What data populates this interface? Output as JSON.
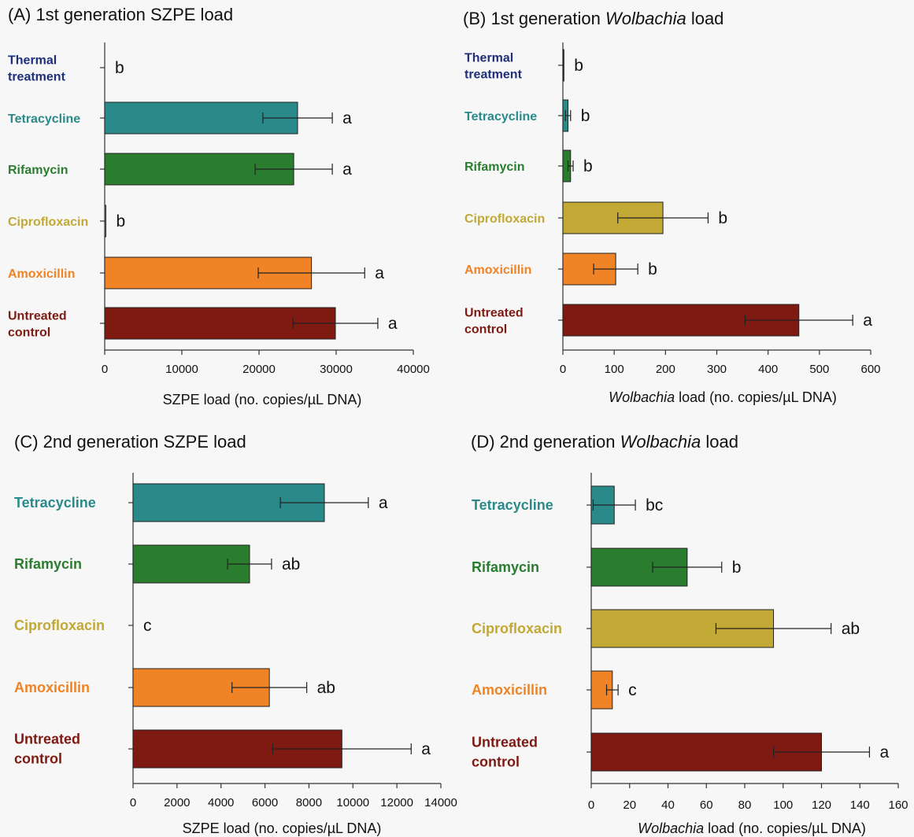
{
  "colors": {
    "Thermal treatment": "#1f2f7a",
    "Tetracycline": "#2a8a89",
    "Rifamycin": "#2a7d2e",
    "Ciprofloxacin": "#c2a834",
    "Amoxicillin": "#ef8325",
    "Untreated control": "#7f1a12"
  },
  "chart_data": [
    {
      "id": "A",
      "type": "bar",
      "orientation": "horizontal",
      "title": "(A) 1st generation SZPE load",
      "xlabel": "SZPE load (no. copies/µL DNA)",
      "xlabel_parts": [
        {
          "t": "SZPE load (no. copies/µL DNA)",
          "i": false
        }
      ],
      "xlim": [
        0,
        40000
      ],
      "xticks": [
        0,
        10000,
        20000,
        30000,
        40000
      ],
      "categories": [
        "Thermal treatment",
        "Tetracycline",
        "Rifamycin",
        "Ciprofloxacin",
        "Amoxicillin",
        "Untreated control"
      ],
      "category_lines": [
        [
          "Thermal",
          "treatment"
        ],
        [
          "Tetracycline"
        ],
        [
          "Rifamycin"
        ],
        [
          "Ciprofloxacin"
        ],
        [
          "Amoxicillin"
        ],
        [
          "Untreated",
          "control"
        ]
      ],
      "values": [
        0,
        25000,
        24500,
        150,
        26800,
        29900
      ],
      "errors": [
        0,
        4500,
        5000,
        0,
        6900,
        5500
      ],
      "significance": [
        "b",
        "a",
        "a",
        "b",
        "a",
        "a"
      ],
      "grid": false
    },
    {
      "id": "B",
      "type": "bar",
      "orientation": "horizontal",
      "title": "(B) 1st generation Wolbachia load",
      "title_parts": [
        {
          "t": "(B) 1st generation ",
          "i": false
        },
        {
          "t": "Wolbachia",
          "i": true
        },
        {
          "t": " load",
          "i": false
        }
      ],
      "xlabel": "Wolbachia load (no. copies/µL DNA)",
      "xlabel_parts": [
        {
          "t": "Wolbachia",
          "i": true
        },
        {
          "t": " load (no. copies/µL DNA)",
          "i": false
        }
      ],
      "xlim": [
        0,
        600
      ],
      "xticks": [
        0,
        100,
        200,
        300,
        400,
        500,
        600
      ],
      "categories": [
        "Thermal treatment",
        "Tetracycline",
        "Rifamycin",
        "Ciprofloxacin",
        "Amoxicillin",
        "Untreated control"
      ],
      "category_lines": [
        [
          "Thermal",
          "treatment"
        ],
        [
          "Tetracycline"
        ],
        [
          "Rifamycin"
        ],
        [
          "Ciprofloxacin"
        ],
        [
          "Amoxicillin"
        ],
        [
          "Untreated",
          "control"
        ]
      ],
      "values": [
        2,
        10,
        15,
        195,
        103,
        460
      ],
      "errors": [
        0,
        5,
        5,
        88,
        43,
        105
      ],
      "significance": [
        "b",
        "b",
        "b",
        "b",
        "b",
        "a"
      ],
      "grid": false
    },
    {
      "id": "C",
      "type": "bar",
      "orientation": "horizontal",
      "title": "(C) 2nd generation SZPE load",
      "xlabel": "SZPE load (no. copies/µL DNA)",
      "xlabel_parts": [
        {
          "t": "SZPE load (no. copies/µL DNA)",
          "i": false
        }
      ],
      "xlim": [
        0,
        14000
      ],
      "xticks": [
        0,
        2000,
        4000,
        6000,
        8000,
        10000,
        12000,
        14000
      ],
      "categories": [
        "Tetracycline",
        "Rifamycin",
        "Ciprofloxacin",
        "Amoxicillin",
        "Untreated control"
      ],
      "category_lines": [
        [
          "Tetracycline"
        ],
        [
          "Rifamycin"
        ],
        [
          "Ciprofloxacin"
        ],
        [
          "Amoxicillin"
        ],
        [
          "Untreated",
          "control"
        ]
      ],
      "values": [
        8700,
        5300,
        0,
        6200,
        9500
      ],
      "errors": [
        2000,
        1000,
        0,
        1700,
        3150
      ],
      "significance": [
        "a",
        "ab",
        "c",
        "ab",
        "a"
      ],
      "grid": false
    },
    {
      "id": "D",
      "type": "bar",
      "orientation": "horizontal",
      "title": "(D) 2nd generation Wolbachia load",
      "title_parts": [
        {
          "t": "(D) 2nd generation ",
          "i": false
        },
        {
          "t": "Wolbachia",
          "i": true
        },
        {
          "t": " load",
          "i": false
        }
      ],
      "xlabel": "Wolbachia load (no. copies/µL DNA)",
      "xlabel_parts": [
        {
          "t": "Wolbachia",
          "i": true
        },
        {
          "t": " load (no. copies/µL DNA)",
          "i": false
        }
      ],
      "xlim": [
        0,
        160
      ],
      "xticks": [
        0,
        20,
        40,
        60,
        80,
        100,
        120,
        140,
        160
      ],
      "categories": [
        "Tetracycline",
        "Rifamycin",
        "Ciprofloxacin",
        "Amoxicillin",
        "Untreated control"
      ],
      "category_lines": [
        [
          "Tetracycline"
        ],
        [
          "Rifamycin"
        ],
        [
          "Ciprofloxacin"
        ],
        [
          "Amoxicillin"
        ],
        [
          "Untreated",
          "control"
        ]
      ],
      "values": [
        12,
        50,
        95,
        11,
        120
      ],
      "errors": [
        11,
        18,
        30,
        3,
        25
      ],
      "significance": [
        "bc",
        "b",
        "ab",
        "c",
        "a"
      ],
      "grid": false
    }
  ]
}
